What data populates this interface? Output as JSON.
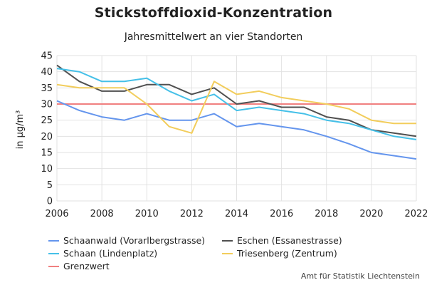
{
  "chart_data": {
    "type": "line",
    "title": "Stickstoffdioxid-Konzentration",
    "subtitle": "Jahresmittelwert an vier Standorten",
    "xlabel": "",
    "ylabel": "in µg/m³",
    "x": [
      2006,
      2007,
      2008,
      2009,
      2010,
      2011,
      2012,
      2013,
      2014,
      2015,
      2016,
      2017,
      2018,
      2019,
      2020,
      2021,
      2022
    ],
    "xlim": [
      2006,
      2022
    ],
    "ylim": [
      0,
      45
    ],
    "xticks": [
      "2006",
      "2008",
      "2010",
      "2012",
      "2014",
      "2016",
      "2018",
      "2020",
      "2022"
    ],
    "yticks": [
      "0",
      "5",
      "10",
      "15",
      "20",
      "25",
      "30",
      "35",
      "40",
      "45"
    ],
    "grid": true,
    "legend_position": "bottom",
    "series": [
      {
        "name": "Schaanwald (Vorarlbergstrasse)",
        "color": "#6495ED",
        "values": [
          31,
          28,
          26,
          25,
          27,
          25,
          25,
          27,
          23,
          24,
          23,
          22,
          20,
          17.7,
          15,
          14,
          13
        ]
      },
      {
        "name": "Eschen (Essanestrasse)",
        "color": "#505050",
        "values": [
          42,
          37,
          34,
          34,
          36,
          36,
          33,
          35,
          30,
          31,
          29,
          29,
          26,
          25,
          22,
          21,
          20
        ]
      },
      {
        "name": "Schaan (Lindenplatz)",
        "color": "#45C0E8",
        "values": [
          41,
          40,
          37,
          37,
          38,
          34,
          31,
          33,
          28,
          29,
          28,
          27,
          25,
          24,
          22,
          20,
          19
        ]
      },
      {
        "name": "Triesenberg (Zentrum)",
        "color": "#F2CD5C",
        "values": [
          36,
          35,
          35,
          35,
          30,
          23,
          21,
          37,
          33,
          34,
          32,
          31,
          30,
          28.5,
          25,
          24,
          24
        ]
      },
      {
        "name": "Grenzwert",
        "color": "#F08080",
        "values": [
          30,
          30,
          30,
          30,
          30,
          30,
          30,
          30,
          30,
          30,
          30,
          30,
          30,
          30,
          30,
          30,
          30
        ]
      }
    ]
  },
  "source": "Amt für Statistik Liechtenstein"
}
